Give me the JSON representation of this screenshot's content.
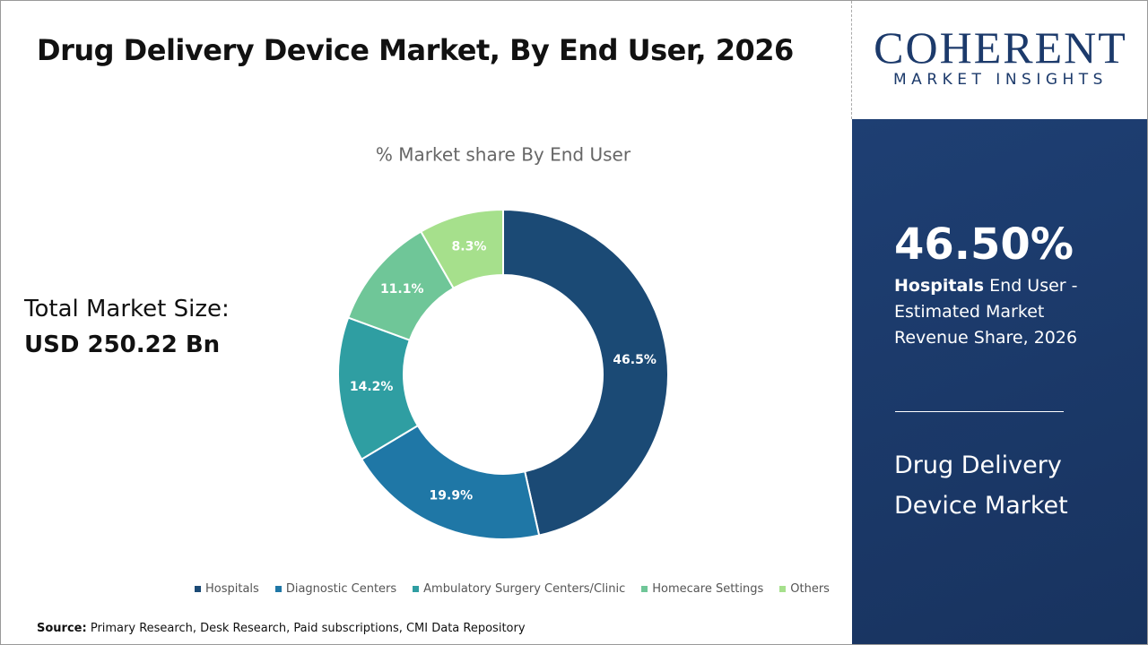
{
  "title": "Drug Delivery Device Market, By End User, 2026",
  "market_size": {
    "label": "Total Market Size:",
    "value": "USD 250.22 Bn"
  },
  "logo": {
    "name": "COHERENT",
    "tagline": "MARKET INSIGHTS"
  },
  "highlight": {
    "value": "46.50%",
    "segment": "Hospitals",
    "description": "End User - Estimated Market Revenue Share, 2026",
    "market": "Drug Delivery Device Market"
  },
  "source": {
    "label": "Source:",
    "text": "Primary Research, Desk Research, Paid subscriptions, CMI Data Repository"
  },
  "chart_data": {
    "type": "donut",
    "title": "% Market share By End User",
    "categories": [
      "Hospitals",
      "Diagnostic Centers",
      "Ambulatory Surgery Centers/Clinic",
      "Homecare Settings",
      "Others"
    ],
    "values": [
      46.5,
      19.9,
      14.2,
      11.1,
      8.3
    ],
    "value_labels": [
      "46.5%",
      "19.9%",
      "14.2%",
      "11.1%",
      "8.3%"
    ],
    "colors": [
      "#1b4a75",
      "#1f77a6",
      "#2f9ea2",
      "#6fc698",
      "#a6e08c"
    ]
  }
}
